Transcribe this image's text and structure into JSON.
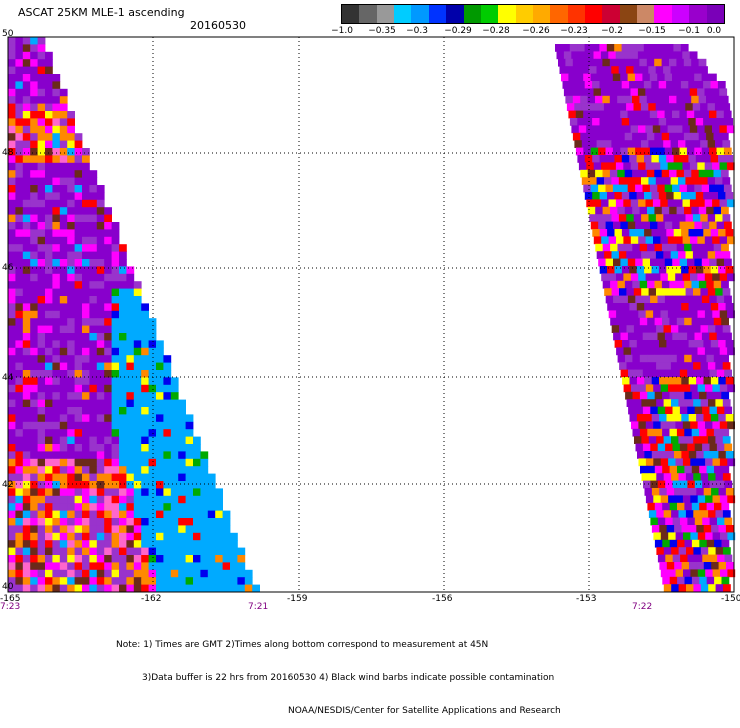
{
  "header": {
    "title": "ASCAT 25KM MLE-1 ascending",
    "date": "20160530"
  },
  "colorbar": {
    "colors": [
      "#333333",
      "#666666",
      "#999999",
      "#00ccff",
      "#0099ff",
      "#0033ff",
      "#0000aa",
      "#009900",
      "#00cc00",
      "#ffff00",
      "#ffcc00",
      "#ffaa00",
      "#ff6600",
      "#ff3300",
      "#ff0000",
      "#cc0033",
      "#8b4513",
      "#cc8866",
      "#ff00ff",
      "#cc00ff",
      "#9900cc",
      "#7a00b8"
    ],
    "labels": [
      "−1.0",
      "−0.35",
      "−0.3",
      "−0.29",
      "−0.28",
      "−0.26",
      "−0.23",
      "−0.2",
      "−0.15",
      "−0.1",
      "0.0"
    ]
  },
  "map": {
    "lat_labels": [
      "50",
      "48",
      "46",
      "44",
      "42",
      "40"
    ],
    "lon_labels": [
      "-165",
      "-162",
      "-159",
      "-156",
      "-153",
      "-150"
    ],
    "times": [
      "7:23",
      "7:21",
      "7:22"
    ]
  },
  "footer": {
    "line1": "Note: 1) Times are GMT 2)Times along bottom correspond to measurement at 45N",
    "line2": "3)Data buffer is 22 hrs from 20160530 4) Black wind barbs indicate possible contamination",
    "line3": "NOAA/NESDIS/Center for Satellite Applications and Research"
  },
  "palette": {
    "purple": "#8800cc",
    "violet": "#9933cc",
    "magenta": "#ff00ff",
    "light_blue": "#00aaff",
    "blue": "#0000ee",
    "green": "#00aa00",
    "yellow": "#ffff00",
    "orange": "#ff8800",
    "red": "#ff0000",
    "brown": "#6b2a1a",
    "pink": "#ff66cc"
  }
}
